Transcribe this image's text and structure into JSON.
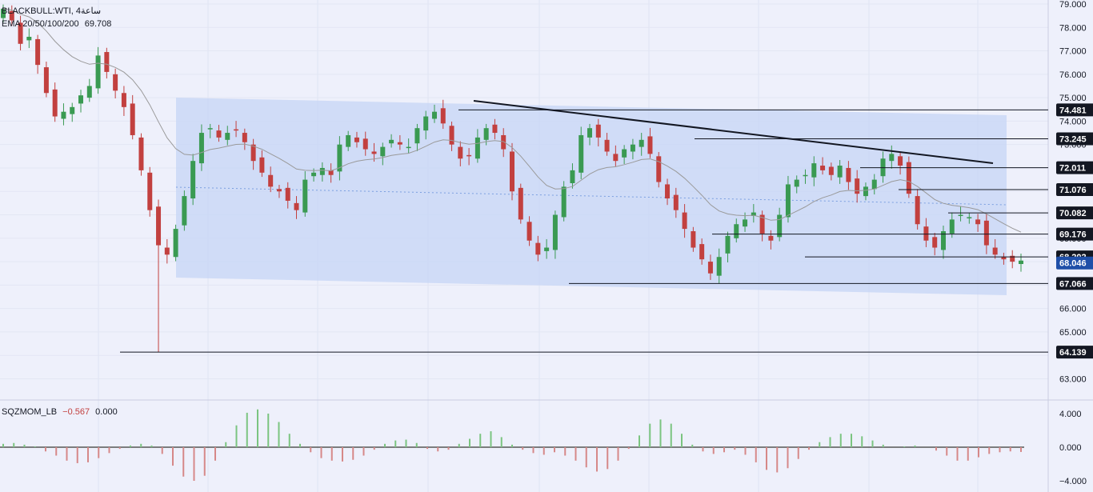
{
  "header": {
    "symbol": "BLACKBULL:WTI, 4ساعة",
    "indicator_name": "EMA 20/50/100/200",
    "indicator_value": "69.708"
  },
  "oscillator": {
    "name": "SQZMOM_LB",
    "value1": "−0.567",
    "value2": "0.000",
    "axis_labels": [
      "4.000",
      "0.000",
      "−4.000"
    ]
  },
  "price_axis": {
    "ticks": [
      "79.000",
      "78.000",
      "77.000",
      "76.000",
      "75.000",
      "74.000",
      "73.000",
      "72.000",
      "71.000",
      "70.000",
      "69.000",
      "68.000",
      "67.000",
      "66.000",
      "65.000",
      "64.000",
      "63.000"
    ]
  },
  "level_labels": [
    "74.481",
    "73.245",
    "72.011",
    "71.076",
    "70.082",
    "69.176",
    "67.066",
    "64.139",
    "68.202"
  ],
  "current_price": "68.046",
  "colors": {
    "up": "#3a9a52",
    "down": "#c2403f",
    "channel": "#c5d6f6",
    "ema": "#9a9a9a",
    "current_badge": "#1f4fa8",
    "osc_up": "#7bc480",
    "osc_down": "#d68888"
  },
  "chart_data": {
    "type": "candlestick",
    "series_levels": [
      74.481,
      73.245,
      72.011,
      71.076,
      70.082,
      69.176,
      68.202,
      67.066,
      64.139
    ],
    "current_price": 68.046,
    "ema_value": 69.708,
    "ylim": [
      63,
      79
    ],
    "closes_approx": [
      78.8,
      78.3,
      77.3,
      77.6,
      76.4,
      75.2,
      74.2,
      74.4,
      74.6,
      75.1,
      75.5,
      76.8,
      76.1,
      75.3,
      74.6,
      73.4,
      71.9,
      70.2,
      68.7,
      68.3,
      69.4,
      70.8,
      72.3,
      73.5,
      73.7,
      73.3,
      73.5,
      73.6,
      73.1,
      72.3,
      71.8,
      71.2,
      71.0,
      70.6,
      70.2,
      71.5,
      71.8,
      72.0,
      71.7,
      73.0,
      73.4,
      73.1,
      72.8,
      72.6,
      72.9,
      73.2,
      73.0,
      72.9,
      73.7,
      74.2,
      74.4,
      73.9,
      73.0,
      72.4,
      72.5,
      73.3,
      73.7,
      73.5,
      72.8,
      71.0,
      69.8,
      68.9,
      68.3,
      68.6,
      70.0,
      71.2,
      71.9,
      73.4,
      73.7,
      73.3,
      72.7,
      72.3,
      72.8,
      73.0,
      73.2,
      72.6,
      71.4,
      70.7,
      70.2,
      69.4,
      68.6,
      68.1,
      67.5,
      68.2,
      69.1,
      69.6,
      69.8,
      70.1,
      69.2,
      68.9,
      70.0,
      71.3,
      71.5,
      71.7,
      72.2,
      71.9,
      71.7,
      72.1,
      71.4,
      70.9,
      71.2,
      71.5,
      72.4,
      72.6,
      72.1,
      70.9,
      69.6,
      68.9,
      68.6,
      69.3,
      69.8,
      70.0,
      69.9,
      69.6,
      68.7,
      68.3,
      68.1,
      68.0,
      68.046
    ],
    "oscillator": {
      "name": "SQZMOM_LB",
      "value": -0.567,
      "ylim": [
        -4,
        4
      ],
      "values": [
        0.4,
        0.5,
        0.3,
        0.1,
        -0.5,
        -1.0,
        -1.6,
        -1.9,
        -1.8,
        -1.3,
        -0.7,
        -0.2,
        0.2,
        0.4,
        0.2,
        -0.8,
        -2.2,
        -3.5,
        -4.0,
        -3.4,
        -1.6,
        0.6,
        2.6,
        4.1,
        4.5,
        4.0,
        3.0,
        1.6,
        0.4,
        -0.6,
        -1.3,
        -1.6,
        -1.7,
        -1.5,
        -1.0,
        -0.3,
        0.4,
        0.8,
        0.9,
        0.5,
        -0.2,
        -0.5,
        -0.3,
        0.4,
        1.0,
        1.6,
        1.9,
        1.2,
        0.3,
        -0.3,
        -0.7,
        -0.9,
        -0.6,
        -1.0,
        -1.6,
        -2.4,
        -2.9,
        -2.6,
        -1.6,
        -0.2,
        1.4,
        2.8,
        3.3,
        2.8,
        1.6,
        0.3,
        -0.5,
        -0.8,
        -0.6,
        -0.3,
        -0.9,
        -1.8,
        -2.7,
        -3.0,
        -2.5,
        -1.4,
        -0.3,
        0.6,
        1.2,
        1.6,
        1.6,
        1.3,
        0.8,
        0.3,
        0.0,
        0.1,
        0.2,
        0.0,
        -0.4,
        -1.0,
        -1.6,
        -1.6,
        -1.2,
        -0.8,
        -0.6,
        -0.5,
        -0.567
      ],
      "axis": [
        "4.000",
        "0.000",
        "-4.000"
      ]
    }
  }
}
